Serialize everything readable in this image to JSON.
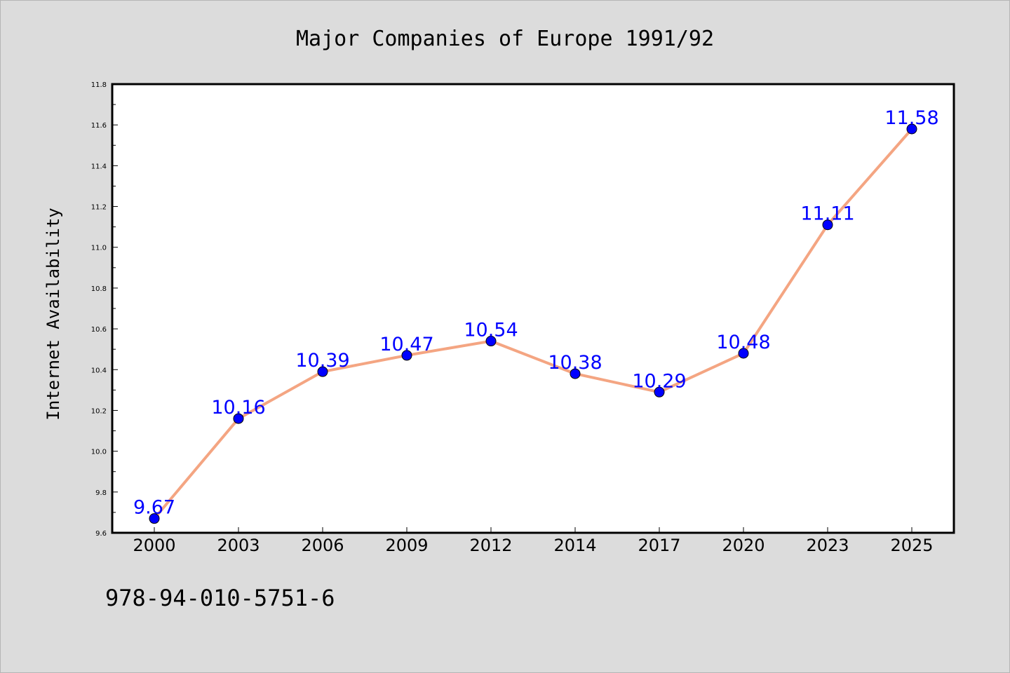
{
  "colors": {
    "background": "#dcdcdc",
    "plot_background": "#ffffff",
    "line": "#f4a582",
    "marker": "#0000ff",
    "label": "#0000ff"
  },
  "footer_text": "978-94-010-5751-6",
  "chart_data": {
    "type": "line",
    "title": "Major Companies of Europe 1991/92",
    "xlabel": "",
    "ylabel": "Internet Availability",
    "categories": [
      "2000",
      "2003",
      "2006",
      "2009",
      "2012",
      "2014",
      "2017",
      "2020",
      "2023",
      "2025"
    ],
    "series": [
      {
        "values": [
          9.67,
          10.16,
          10.39,
          10.47,
          10.54,
          10.38,
          10.29,
          10.48,
          11.11,
          11.58
        ],
        "labels": [
          "9.67",
          "10.16",
          "10.39",
          "10.47",
          "10.54",
          "10.38",
          "10.29",
          "10.48",
          "11.11",
          "11.58"
        ]
      }
    ],
    "ylim": [
      9.6,
      11.8
    ],
    "yticks": [
      "9.6",
      "9.8",
      "10.0",
      "10.2",
      "10.4",
      "10.6",
      "10.8",
      "11.0",
      "11.2",
      "11.4",
      "11.6",
      "11.8"
    ],
    "grid": false,
    "legend": "none",
    "markers": true,
    "data_labels": true
  }
}
